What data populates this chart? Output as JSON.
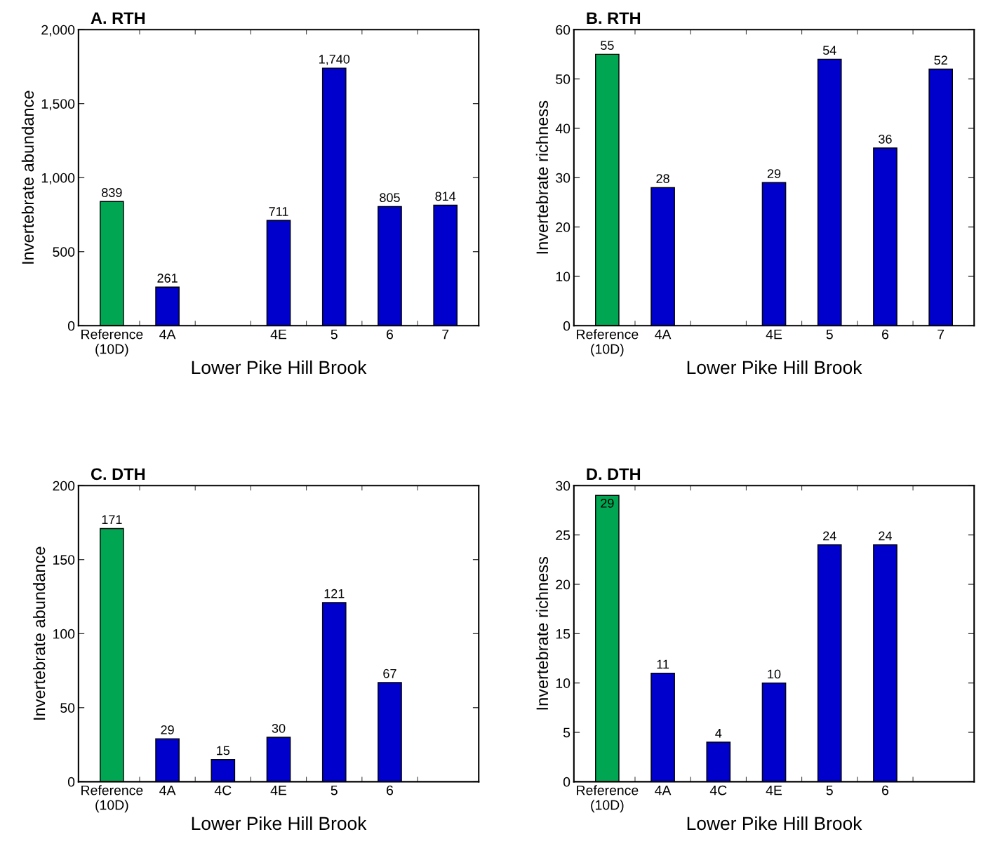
{
  "chart_data": [
    {
      "type": "bar",
      "title": "A. RTH",
      "xlabel": "Lower Pike Hill Brook",
      "ylabel": "Invertebrate abundance",
      "categories": [
        "Reference\n(10D)",
        "4A",
        null,
        "4E",
        "5",
        "6",
        "7"
      ],
      "values": [
        839,
        261,
        null,
        711,
        1740,
        805,
        814
      ],
      "colors": [
        "#00a651",
        "#0000cc",
        "#0000cc",
        "#0000cc",
        "#0000cc",
        "#0000cc",
        "#0000cc"
      ],
      "value_labels": [
        "839",
        "261",
        null,
        "711",
        "1,740",
        "805",
        "814"
      ],
      "ylim": [
        0,
        2000
      ],
      "yticks": [
        0,
        {
          "value": 500,
          "label": "500"
        },
        {
          "value": 1000,
          "label": "1,000"
        },
        {
          "value": 1500,
          "label": "1,500"
        },
        {
          "value": 2000,
          "label": "2,000"
        }
      ],
      "grid": false,
      "legend": false
    },
    {
      "type": "bar",
      "title": "B. RTH",
      "xlabel": "Lower Pike Hill Brook",
      "ylabel": "Invertebrate richness",
      "categories": [
        "Reference\n(10D)",
        "4A",
        null,
        "4E",
        "5",
        "6",
        "7"
      ],
      "values": [
        55,
        28,
        null,
        29,
        54,
        36,
        52
      ],
      "colors": [
        "#00a651",
        "#0000cc",
        "#0000cc",
        "#0000cc",
        "#0000cc",
        "#0000cc",
        "#0000cc"
      ],
      "data_labels": true,
      "ylim": [
        0,
        60
      ],
      "yticks": [
        0,
        10,
        20,
        30,
        40,
        50,
        60
      ],
      "grid": false,
      "legend": false
    },
    {
      "type": "bar",
      "title": "C. DTH",
      "xlabel": "Lower Pike Hill Brook",
      "ylabel": "Invertebrate abundance",
      "categories": [
        "Reference\n(10D)",
        "4A",
        "4C",
        "4E",
        "5",
        "6",
        null
      ],
      "values": [
        171,
        29,
        15,
        30,
        121,
        67,
        null
      ],
      "colors": [
        "#00a651",
        "#0000cc",
        "#0000cc",
        "#0000cc",
        "#0000cc",
        "#0000cc",
        "#0000cc"
      ],
      "data_labels": true,
      "ylim": [
        0,
        200
      ],
      "yticks": [
        0,
        50,
        100,
        150,
        200
      ],
      "grid": false,
      "legend": false
    },
    {
      "type": "bar",
      "title": "D. DTH",
      "xlabel": "Lower Pike Hill Brook",
      "ylabel": "Invertebrate richness",
      "categories": [
        "Reference\n(10D)",
        "4A",
        "4C",
        "4E",
        "5",
        "6",
        null
      ],
      "values": [
        29,
        11,
        4,
        10,
        24,
        24,
        null
      ],
      "colors": [
        "#00a651",
        "#0000cc",
        "#0000cc",
        "#0000cc",
        "#0000cc",
        "#0000cc",
        "#0000cc"
      ],
      "data_labels": true,
      "ylim": [
        0,
        30
      ],
      "yticks": [
        0,
        5,
        10,
        15,
        20,
        25,
        30
      ],
      "grid": false,
      "legend": false
    }
  ]
}
